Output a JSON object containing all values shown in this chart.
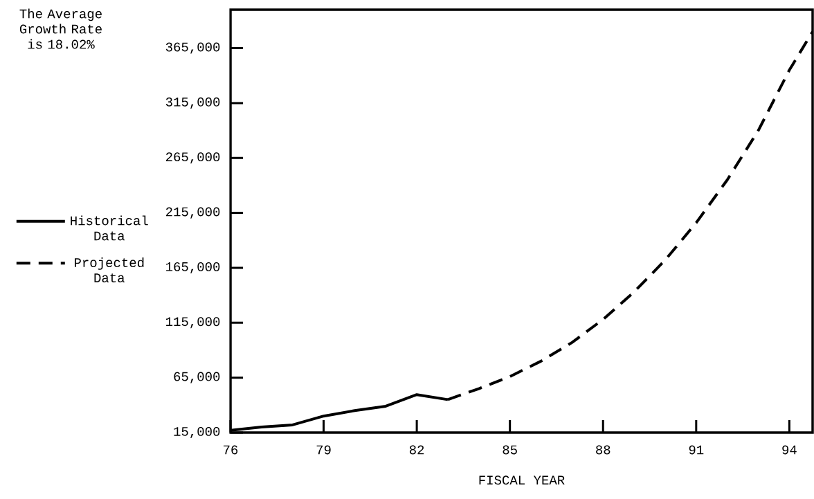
{
  "chart_data": {
    "type": "line",
    "xlabel": "FISCAL YEAR",
    "annotations": [
      "The Average Growth Rate is 18.02%"
    ],
    "xlim": [
      76,
      94.75
    ],
    "ylim": [
      15000,
      400000
    ],
    "xticks": [
      76,
      79,
      82,
      85,
      88,
      91,
      94
    ],
    "yticks": [
      {
        "value": 15000,
        "label": "15,000"
      },
      {
        "value": 65000,
        "label": "65,000"
      },
      {
        "value": 115000,
        "label": "115,000"
      },
      {
        "value": 165000,
        "label": "165,000"
      },
      {
        "value": 215000,
        "label": "215,000"
      },
      {
        "value": 265000,
        "label": "265,000"
      },
      {
        "value": 315000,
        "label": "315,000"
      },
      {
        "value": 365000,
        "label": "365,000"
      }
    ],
    "legend": "left",
    "grid": false,
    "series": [
      {
        "name": "Historical Data",
        "color": "#000000",
        "line_style": "solid",
        "x": [
          76,
          77,
          78,
          79,
          80,
          81,
          82,
          83
        ],
        "values": [
          17000,
          20000,
          22000,
          30000,
          35000,
          39000,
          49500,
          45000
        ]
      },
      {
        "name": "Projected Data",
        "color": "#000000",
        "line_style": "dashed",
        "x": [
          83,
          84,
          85,
          86,
          87,
          88,
          89,
          90,
          91,
          92,
          93,
          94,
          94.75
        ],
        "values": [
          45000,
          55000,
          66000,
          80000,
          97000,
          118000,
          143000,
          172000,
          206000,
          245000,
          290000,
          345000,
          380000
        ]
      }
    ]
  }
}
